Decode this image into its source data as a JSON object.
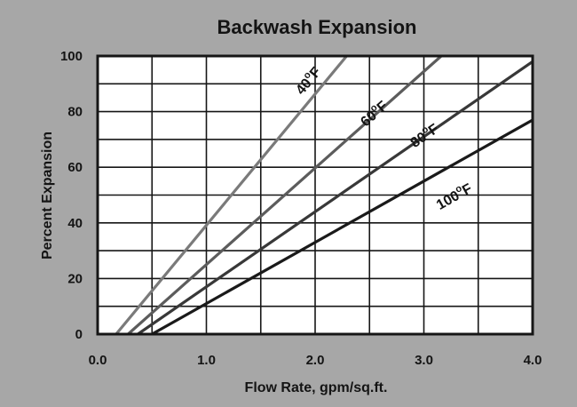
{
  "chart_data": {
    "type": "line",
    "title": "Backwash Expansion",
    "xlabel": "Flow Rate, gpm/sq.ft.",
    "ylabel": "Percent Expansion",
    "xlim": [
      0,
      4
    ],
    "ylim": [
      0,
      100
    ],
    "x_ticks": [
      "0.0",
      "1.0",
      "2.0",
      "3.0",
      "4.0"
    ],
    "y_ticks": [
      "0",
      "20",
      "40",
      "60",
      "80",
      "100"
    ],
    "grid": true,
    "x_gridlines": [
      0,
      0.5,
      1,
      1.5,
      2,
      2.5,
      3,
      3.5,
      4
    ],
    "y_gridlines": [
      0,
      10,
      20,
      30,
      40,
      50,
      60,
      70,
      80,
      90,
      100
    ],
    "series": [
      {
        "name": "40°F",
        "label_main": "40",
        "label_sup": "o",
        "label_unit": "F",
        "color": "#7a7a7a",
        "x": [
          0.17,
          2.29
        ],
        "y": [
          0,
          100
        ],
        "label_at": [
          1.97,
          90
        ]
      },
      {
        "name": "60°F",
        "label_main": "60",
        "label_sup": "o",
        "label_unit": "F",
        "color": "#5c5c5c",
        "x": [
          0.28,
          3.16
        ],
        "y": [
          0,
          100
        ],
        "label_at": [
          2.57,
          78
        ]
      },
      {
        "name": "80°F",
        "label_main": "80",
        "label_sup": "o",
        "label_unit": "F",
        "color": "#383838",
        "x": [
          0.37,
          4.0
        ],
        "y": [
          0,
          98
        ],
        "label_at": [
          3.03,
          70
        ]
      },
      {
        "name": "100°F",
        "label_main": "100",
        "label_sup": "o",
        "label_unit": "F",
        "color": "#1a1a1a",
        "x": [
          0.5,
          4.0
        ],
        "y": [
          0,
          77
        ],
        "label_at": [
          3.3,
          48
        ]
      }
    ]
  }
}
